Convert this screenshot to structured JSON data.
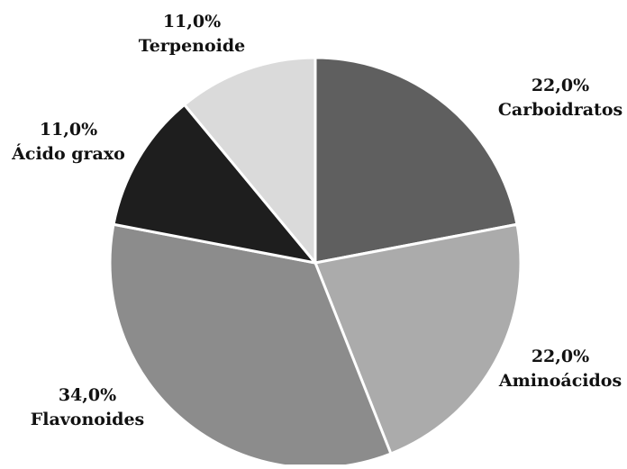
{
  "chart_data": {
    "type": "pie",
    "slices": [
      {
        "label": "Carboidratos",
        "value": 22.0,
        "value_label": "22,0%",
        "color": "#5f5f5f"
      },
      {
        "label": "Aminoácidos",
        "value": 22.0,
        "value_label": "22,0%",
        "color": "#ababab"
      },
      {
        "label": "Flavonoides",
        "value": 34.0,
        "value_label": "34,0%",
        "color": "#8c8c8c"
      },
      {
        "label": "Ácido graxo",
        "value": 11.0,
        "value_label": "11,0%",
        "color": "#1e1e1e"
      },
      {
        "label": "Terpenoide",
        "value": 11.0,
        "value_label": "11,0%",
        "color": "#dadada"
      }
    ],
    "start": "12 o'clock",
    "direction": "clockwise",
    "slice_separator_color": "#ffffff",
    "legend": "none"
  }
}
